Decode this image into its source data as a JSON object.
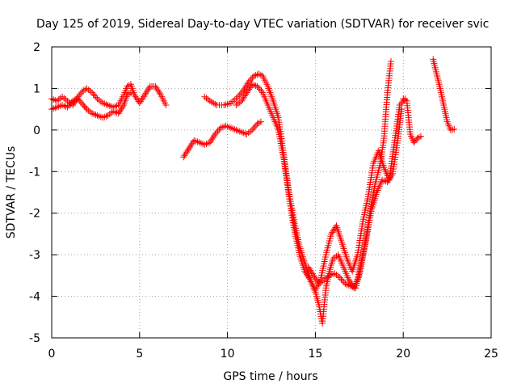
{
  "chart_data": {
    "type": "scatter",
    "title": "Day 125 of 2019, Sidereal Day-to-day VTEC variation (SDTVAR) for receiver svic",
    "xlabel": "GPS time / hours",
    "ylabel": "SDTVAR / TECUs",
    "xlim": [
      0,
      25
    ],
    "ylim": [
      -5,
      2
    ],
    "xticks": [
      0,
      5,
      10,
      15,
      20,
      25
    ],
    "yticks": [
      -5,
      -4,
      -3,
      -2,
      -1,
      0,
      1,
      2
    ],
    "grid": true,
    "marker": "+",
    "series": [
      {
        "name": "SDTVAR",
        "color": "#ff0000",
        "segments": [
          {
            "x": [
              0.0,
              0.3,
              0.6,
              0.9,
              1.2,
              1.5,
              1.8,
              2.0,
              2.3,
              2.6,
              2.9,
              3.2,
              3.5,
              3.8,
              4.1,
              4.3,
              4.5,
              4.7,
              5.0,
              5.3,
              5.6,
              5.9,
              6.2,
              6.5
            ],
            "y": [
              0.75,
              0.7,
              0.8,
              0.7,
              0.6,
              0.8,
              0.95,
              1.0,
              0.9,
              0.75,
              0.65,
              0.6,
              0.55,
              0.6,
              0.85,
              1.05,
              1.1,
              0.85,
              0.65,
              0.85,
              1.05,
              1.05,
              0.85,
              0.6
            ]
          },
          {
            "x": [
              0.0,
              0.3,
              0.6,
              0.9,
              1.2,
              1.5,
              1.8,
              2.0,
              2.3,
              2.6,
              2.9,
              3.2,
              3.5,
              3.8,
              4.1,
              4.3,
              4.5
            ],
            "y": [
              0.5,
              0.55,
              0.6,
              0.55,
              0.7,
              0.75,
              0.6,
              0.5,
              0.4,
              0.35,
              0.3,
              0.35,
              0.45,
              0.4,
              0.6,
              0.85,
              0.9
            ]
          },
          {
            "x": [
              7.5,
              7.8,
              8.1,
              8.4,
              8.7,
              9.0,
              9.3,
              9.6,
              9.9,
              10.2,
              10.5,
              10.8,
              11.1,
              11.4,
              11.7,
              11.9
            ],
            "y": [
              -0.65,
              -0.45,
              -0.25,
              -0.3,
              -0.35,
              -0.3,
              -0.1,
              0.05,
              0.1,
              0.05,
              0.0,
              -0.05,
              -0.1,
              0.0,
              0.15,
              0.2
            ]
          },
          {
            "x": [
              8.7,
              9.0,
              9.4,
              9.8,
              10.2,
              10.6,
              10.9,
              11.2,
              11.5,
              11.8,
              12.0,
              12.3,
              12.6,
              12.9,
              13.2,
              13.5,
              13.8,
              14.1,
              14.4,
              14.7,
              15.0,
              15.2,
              15.4,
              15.6,
              15.8,
              16.0,
              16.3,
              16.6,
              16.9,
              17.2,
              17.5,
              17.8,
              18.1,
              18.4,
              18.7,
              18.9,
              19.1,
              19.3
            ],
            "y": [
              0.8,
              0.7,
              0.6,
              0.6,
              0.65,
              0.8,
              0.95,
              1.15,
              1.3,
              1.35,
              1.3,
              1.05,
              0.7,
              0.3,
              -0.6,
              -1.5,
              -2.2,
              -2.8,
              -3.2,
              -3.6,
              -3.9,
              -4.2,
              -4.65,
              -3.8,
              -3.4,
              -3.1,
              -3.0,
              -3.3,
              -3.6,
              -3.8,
              -3.5,
              -2.8,
              -2.0,
              -1.3,
              -0.8,
              -0.2,
              0.9,
              1.65
            ]
          },
          {
            "x": [
              10.5,
              10.8,
              11.1,
              11.4,
              11.7,
              12.0,
              12.3,
              12.6,
              12.9,
              13.2,
              13.5,
              13.8,
              14.1,
              14.4,
              14.7,
              15.0,
              15.3,
              15.6,
              15.9,
              16.2,
              16.5,
              16.8,
              17.1,
              17.4,
              17.7,
              18.0,
              18.3,
              18.6,
              18.9,
              19.2,
              19.5,
              19.8,
              20.1
            ],
            "y": [
              0.6,
              0.7,
              0.9,
              1.1,
              1.05,
              0.9,
              0.6,
              0.3,
              0.0,
              -0.7,
              -1.6,
              -2.4,
              -3.0,
              -3.4,
              -3.6,
              -3.85,
              -3.6,
              -3.0,
              -2.5,
              -2.3,
              -2.7,
              -3.1,
              -3.4,
              -3.0,
              -2.2,
              -1.6,
              -0.8,
              -0.5,
              -0.9,
              -1.2,
              -0.3,
              0.6,
              0.75
            ]
          },
          {
            "x": [
              14.6,
              14.9,
              15.2,
              15.5,
              15.8,
              16.1,
              16.4,
              16.7,
              17.0,
              17.3,
              17.6,
              17.9,
              18.2,
              18.5,
              18.8,
              19.1,
              19.4,
              19.7,
              19.9
            ],
            "y": [
              -3.3,
              -3.5,
              -3.7,
              -3.6,
              -3.5,
              -3.45,
              -3.55,
              -3.7,
              -3.75,
              -3.8,
              -3.2,
              -2.6,
              -1.9,
              -1.5,
              -1.2,
              -1.25,
              -1.05,
              -0.2,
              0.5
            ]
          },
          {
            "x": [
              20.0,
              20.2,
              20.4,
              20.6,
              20.8,
              21.0
            ],
            "y": [
              0.75,
              0.7,
              -0.1,
              -0.3,
              -0.2,
              -0.15
            ]
          },
          {
            "x": [
              21.7,
              21.9,
              22.1,
              22.3,
              22.5,
              22.7,
              22.9
            ],
            "y": [
              1.7,
              1.35,
              1.0,
              0.6,
              0.2,
              0.0,
              0.02
            ]
          }
        ]
      }
    ]
  }
}
